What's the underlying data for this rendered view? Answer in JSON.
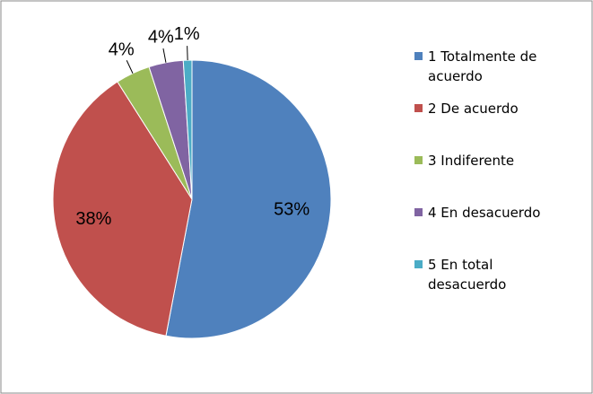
{
  "chart_data": {
    "type": "pie",
    "categories": [
      "1 Totalmente de acuerdo",
      "2 De acuerdo",
      "3 Indiferente",
      "4 En desacuerdo",
      "5 En total desacuerdo"
    ],
    "values": [
      53,
      38,
      4,
      4,
      1
    ],
    "value_labels": [
      "53%",
      "38%",
      "4%",
      "4%",
      "1%"
    ],
    "colors": [
      "#4f81bd",
      "#c0504d",
      "#9bbb59",
      "#8064a2",
      "#4bacc6"
    ],
    "legend": "right"
  }
}
